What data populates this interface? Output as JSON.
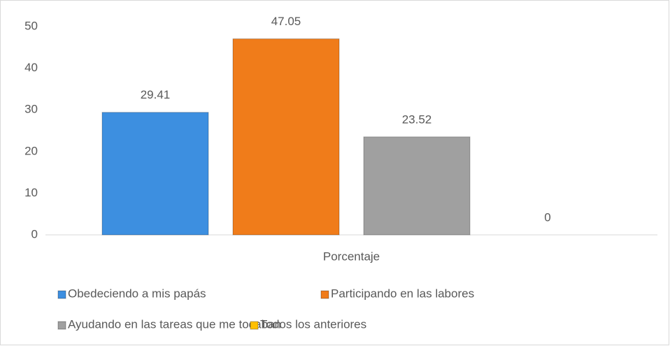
{
  "chart_data": {
    "type": "bar",
    "categories": [
      "Porcentaje"
    ],
    "series": [
      {
        "name": "Obedeciendo a mis papás",
        "color": "#3d8fe0",
        "values": [
          29.41
        ]
      },
      {
        "name": "Participando en las labores",
        "color": "#f07c1a",
        "values": [
          47.05
        ]
      },
      {
        "name": "Ayudando en las tareas que me tocaban",
        "color": "#a0a0a0",
        "values": [
          23.52
        ]
      },
      {
        "name": "Todos los anteriores",
        "color": "#ffc000",
        "values": [
          0
        ]
      }
    ],
    "ylim": [
      0,
      50
    ],
    "yticks": [
      0,
      10,
      20,
      30,
      40,
      50
    ],
    "grid": false,
    "legend": "bottom"
  }
}
